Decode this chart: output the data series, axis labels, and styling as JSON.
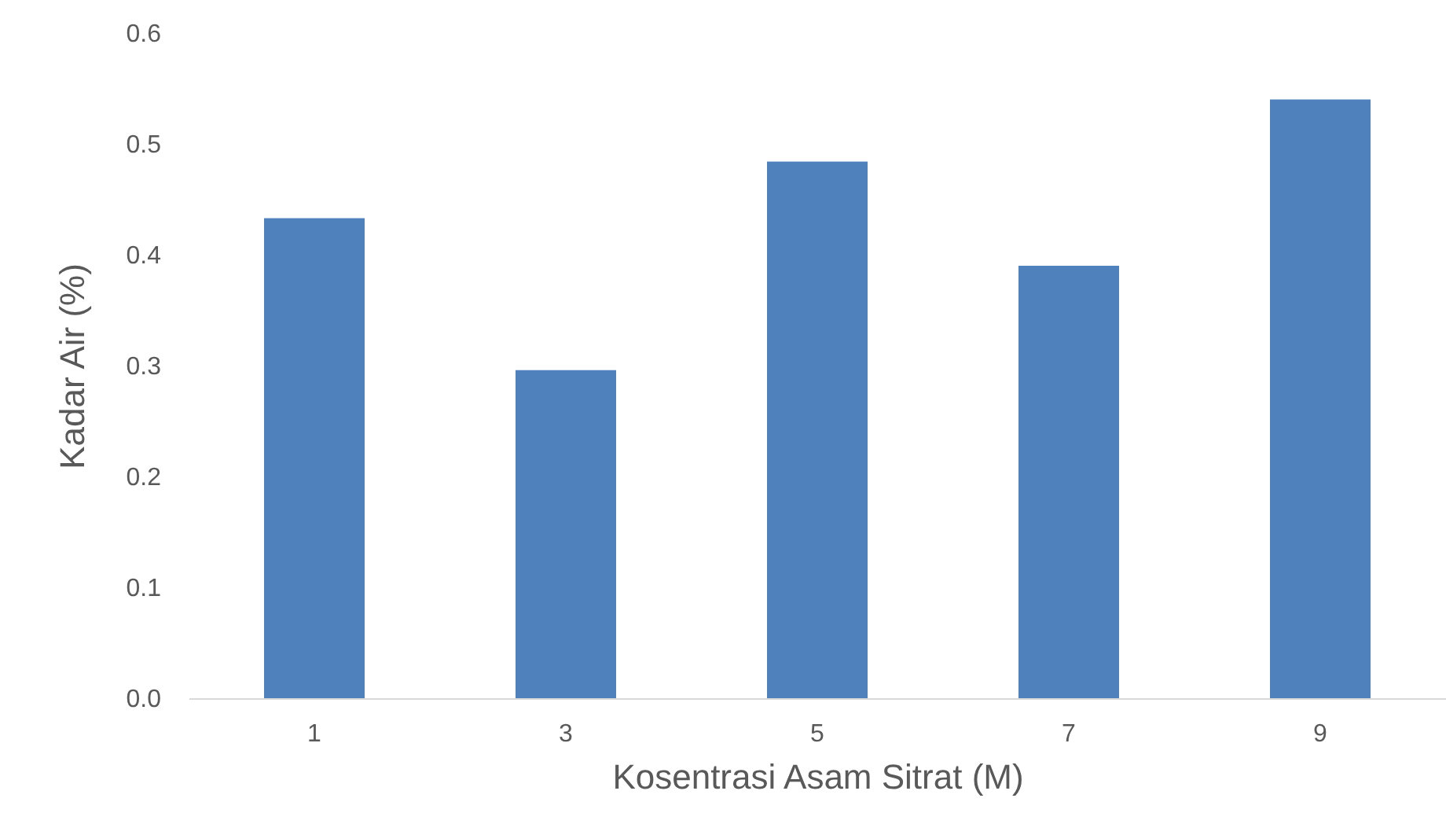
{
  "chart_data": {
    "type": "bar",
    "xlabel": "Kosentrasi Asam Sitrat (M)",
    "ylabel": "Kadar Air (%)",
    "categories": [
      "1",
      "3",
      "5",
      "7",
      "9"
    ],
    "values": [
      0.433,
      0.296,
      0.484,
      0.39,
      0.54
    ],
    "color": "#4f81bd",
    "ylim": [
      0,
      0.6
    ],
    "yticks": [
      {
        "value": 0,
        "label": "0.0"
      },
      0.1,
      0.2,
      0.3,
      0.4,
      0.5,
      0.6
    ],
    "grid": false
  }
}
